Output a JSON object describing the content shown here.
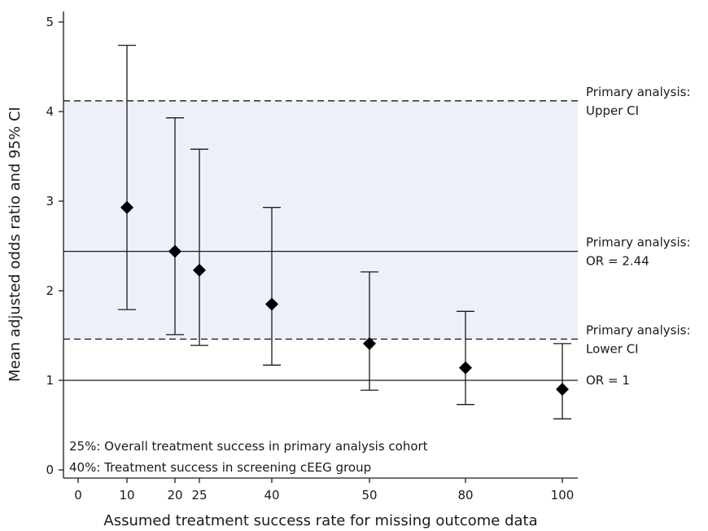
{
  "chart_data": {
    "type": "scatter",
    "title": "",
    "xlabel": "Assumed treatment success rate for missing outcome data",
    "ylabel": "Mean adjusted odds ratio and 95% CI",
    "xlim": [
      -2,
      105
    ],
    "ylim": [
      -0.1,
      5.15
    ],
    "x_tick_labels": [
      "0",
      "10",
      "20",
      "25",
      "40",
      "50",
      "80",
      "100"
    ],
    "y_ticks": [
      0,
      1,
      2,
      3,
      4,
      5
    ],
    "grid": false,
    "points": [
      {
        "x_label": "10",
        "or": 2.93,
        "lower": 1.79,
        "upper": 4.74
      },
      {
        "x_label": "20",
        "or": 2.44,
        "lower": 1.51,
        "upper": 3.93
      },
      {
        "x_label": "25",
        "or": 2.23,
        "lower": 1.39,
        "upper": 3.58
      },
      {
        "x_label": "40",
        "or": 1.85,
        "lower": 1.17,
        "upper": 2.93
      },
      {
        "x_label": "50",
        "or": 1.41,
        "lower": 0.89,
        "upper": 2.21
      },
      {
        "x_label": "80",
        "or": 1.14,
        "lower": 0.73,
        "upper": 1.77
      },
      {
        "x_label": "100",
        "or": 0.9,
        "lower": 0.57,
        "upper": 1.41
      }
    ],
    "reference_lines": [
      {
        "value": 4.12,
        "style": "dashed",
        "label_line1": "Primary analysis:",
        "label_line2": "Upper CI"
      },
      {
        "value": 2.44,
        "style": "solid",
        "label_line1": "Primary analysis:",
        "label_line2": "OR = 2.44"
      },
      {
        "value": 1.46,
        "style": "dashed",
        "label_line1": "Primary analysis:",
        "label_line2": "Lower CI"
      },
      {
        "value": 1.0,
        "style": "solid",
        "label_line1": "",
        "label_line2": "OR = 1"
      }
    ],
    "shaded_band": {
      "from": 1.46,
      "to": 4.12,
      "color": "#edf0f9"
    },
    "notes": [
      "25%: Overall treatment success in primary analysis cohort",
      "40%: Treatment success in screening cEEG group"
    ],
    "colors": {
      "marker": "#000000",
      "line": "#1a1a1a",
      "band": "#edf0f9"
    }
  }
}
